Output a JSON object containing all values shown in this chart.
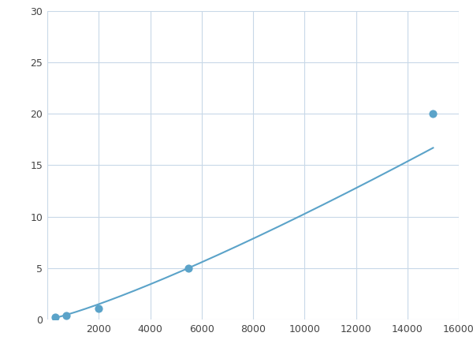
{
  "x": [
    300,
    750,
    2000,
    5500,
    15000
  ],
  "y": [
    0.2,
    0.4,
    1.1,
    5.0,
    20.0
  ],
  "line_color": "#5ba3c9",
  "marker_color": "#5ba3c9",
  "marker_size": 6,
  "xlim": [
    0,
    16000
  ],
  "ylim": [
    0,
    30
  ],
  "xticks": [
    0,
    2000,
    4000,
    6000,
    8000,
    10000,
    12000,
    14000,
    16000
  ],
  "yticks": [
    0,
    5,
    10,
    15,
    20,
    25,
    30
  ],
  "grid_color": "#c8d8e8",
  "background_color": "#ffffff",
  "linewidth": 1.5,
  "figsize": [
    6.0,
    4.5
  ],
  "dpi": 100
}
